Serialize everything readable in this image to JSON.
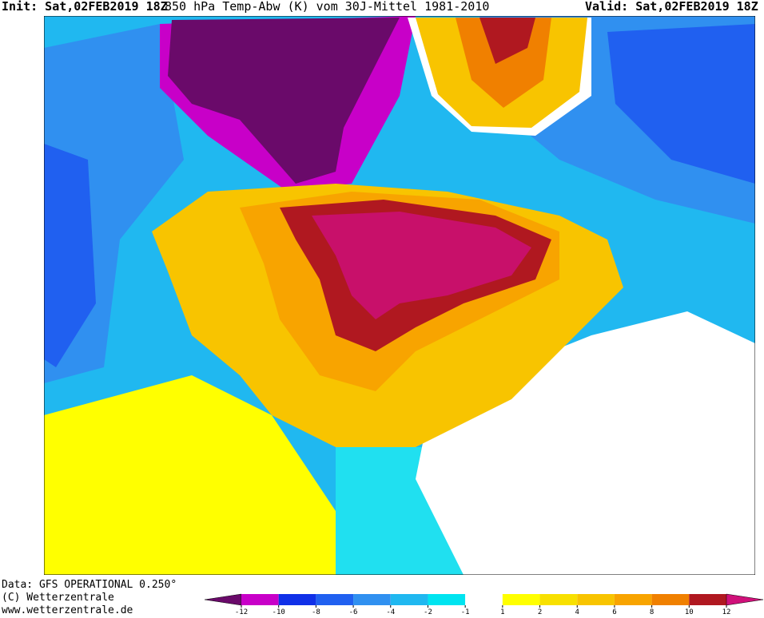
{
  "header": {
    "init": "Init: Sat,02FEB2019 18Z",
    "title": "850 hPa Temp-Abw (K) vom 30J-Mittel 1981-2010",
    "valid": "Valid: Sat,02FEB2019 18Z"
  },
  "footer": {
    "lines": [
      "Data: GFS OPERATIONAL 0.250°",
      "(C) Wetterzentrale",
      "www.wetterzentrale.de"
    ]
  },
  "colorbar": {
    "ticks": [
      -12,
      -10,
      -8,
      -6,
      -4,
      -2,
      -1,
      1,
      2,
      4,
      6,
      8,
      10,
      12
    ],
    "colors": [
      "#6a0a6a",
      "#c800c8",
      "#1030e8",
      "#2060f0",
      "#3090f0",
      "#20b8f0",
      "#00e4f0",
      "#ffffff",
      "#ffff00",
      "#f8e000",
      "#f8c400",
      "#f8a400",
      "#f08000",
      "#b01820",
      "#d0107a"
    ]
  }
}
